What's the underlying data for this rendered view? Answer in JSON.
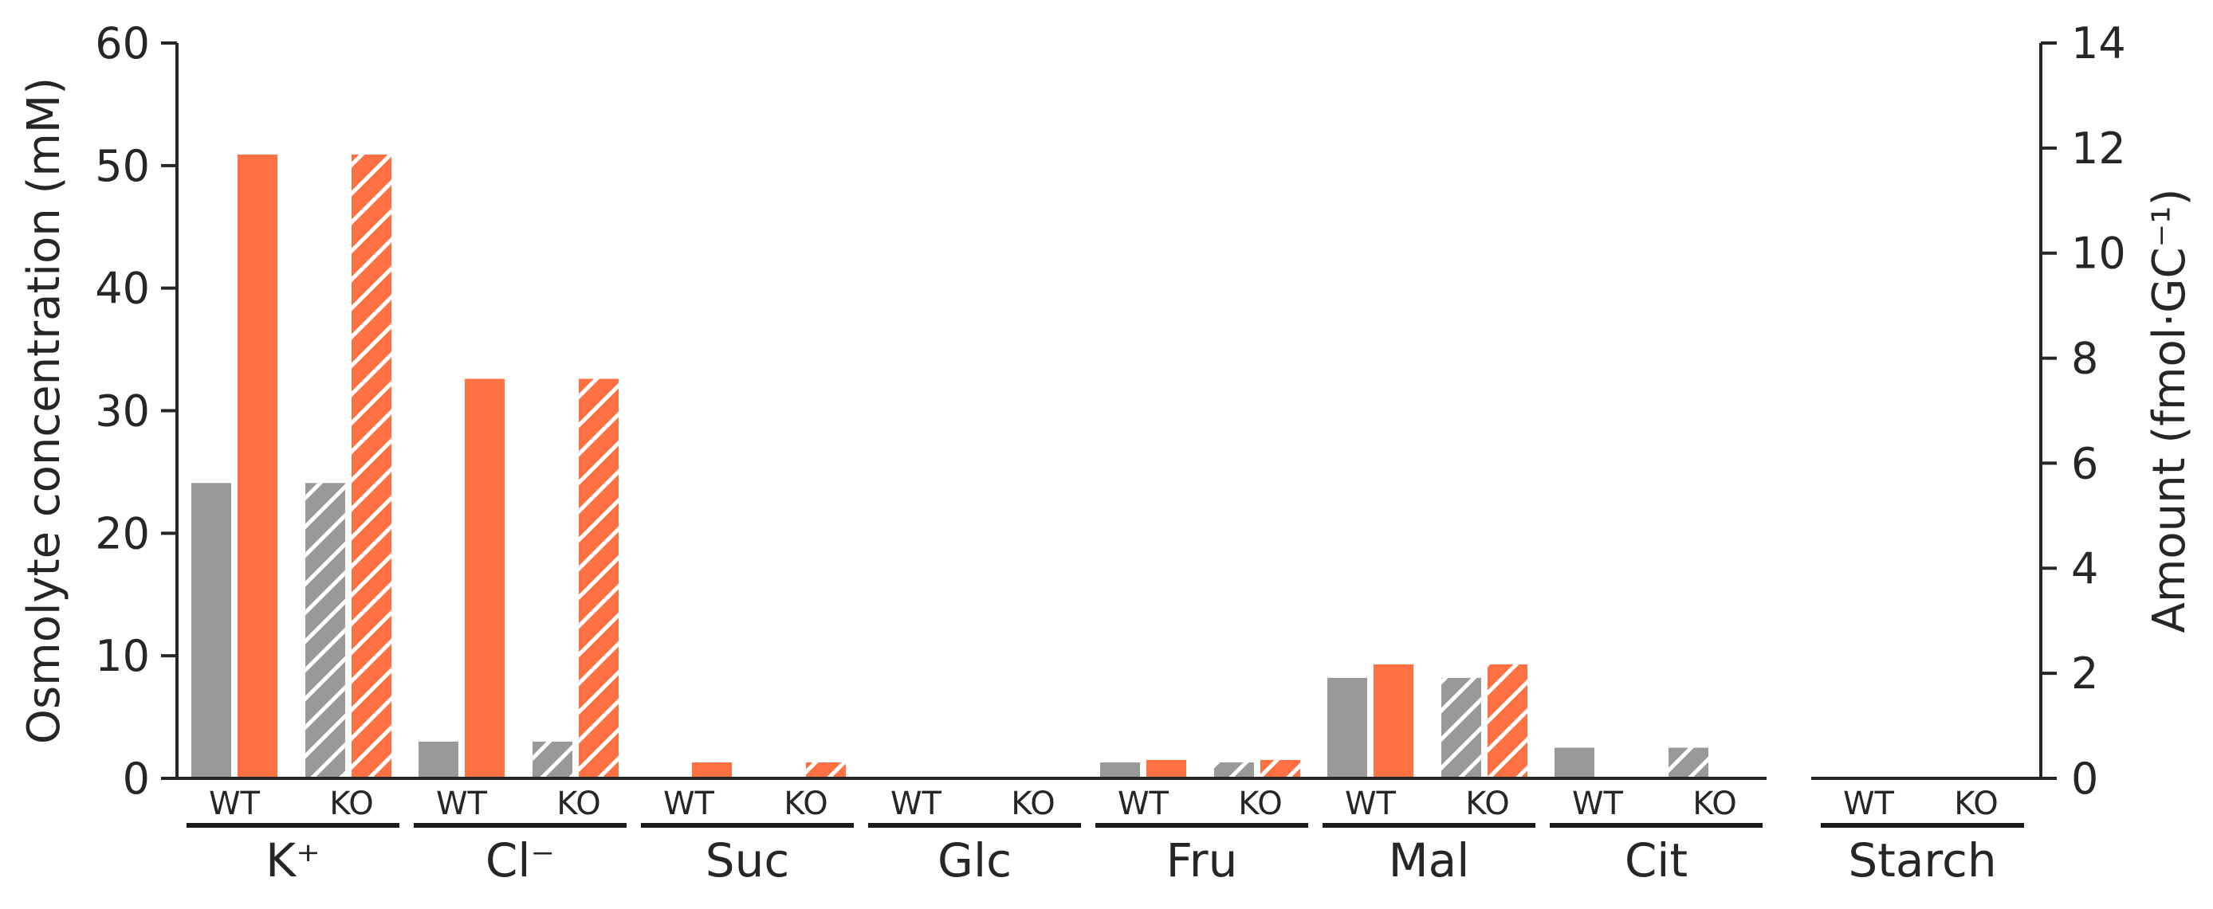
{
  "chart_data": {
    "type": "bar",
    "title": "",
    "left_axis": {
      "label": "Osmolyte concentration (mM)",
      "ylim": [
        0,
        60
      ],
      "ticks": [
        0,
        10,
        20,
        30,
        40,
        50,
        60
      ]
    },
    "right_axis": {
      "label": "Amount (fmol·GC⁻¹)",
      "ylim": [
        0,
        14
      ],
      "ticks": [
        0,
        2,
        4,
        6,
        8,
        10,
        12,
        14
      ]
    },
    "genotypes": [
      "WT",
      "KO"
    ],
    "categories": [
      "K⁺",
      "Cl⁻",
      "Suc",
      "Glc",
      "Fru",
      "Mal",
      "Cit"
    ],
    "series": [
      {
        "genotype": "WT",
        "color": "#999999",
        "hatched": false,
        "values": [
          24.1,
          3.0,
          0.1,
          0.1,
          1.3,
          8.2,
          2.5
        ]
      },
      {
        "genotype": "WT",
        "color": "#ff7043",
        "hatched": false,
        "values": [
          50.9,
          32.6,
          1.3,
          0.1,
          1.5,
          9.3,
          0.1
        ]
      },
      {
        "genotype": "KO",
        "color": "#999999",
        "hatched": true,
        "values": [
          24.1,
          3.0,
          0.1,
          0.1,
          1.3,
          8.2,
          2.5
        ]
      },
      {
        "genotype": "KO",
        "color": "#ff7043",
        "hatched": true,
        "values": [
          50.9,
          32.6,
          1.3,
          0.1,
          1.5,
          9.3,
          0.1
        ]
      }
    ],
    "extra_group": {
      "category": "Starch",
      "axis": "right",
      "wt": {
        "gray": 0.02,
        "orange": 0.02
      },
      "ko": {
        "gray": 0.02,
        "orange": 0.02
      }
    },
    "colors": {
      "gray": "#999999",
      "orange": "#ff7043",
      "axis": "#262626"
    }
  }
}
